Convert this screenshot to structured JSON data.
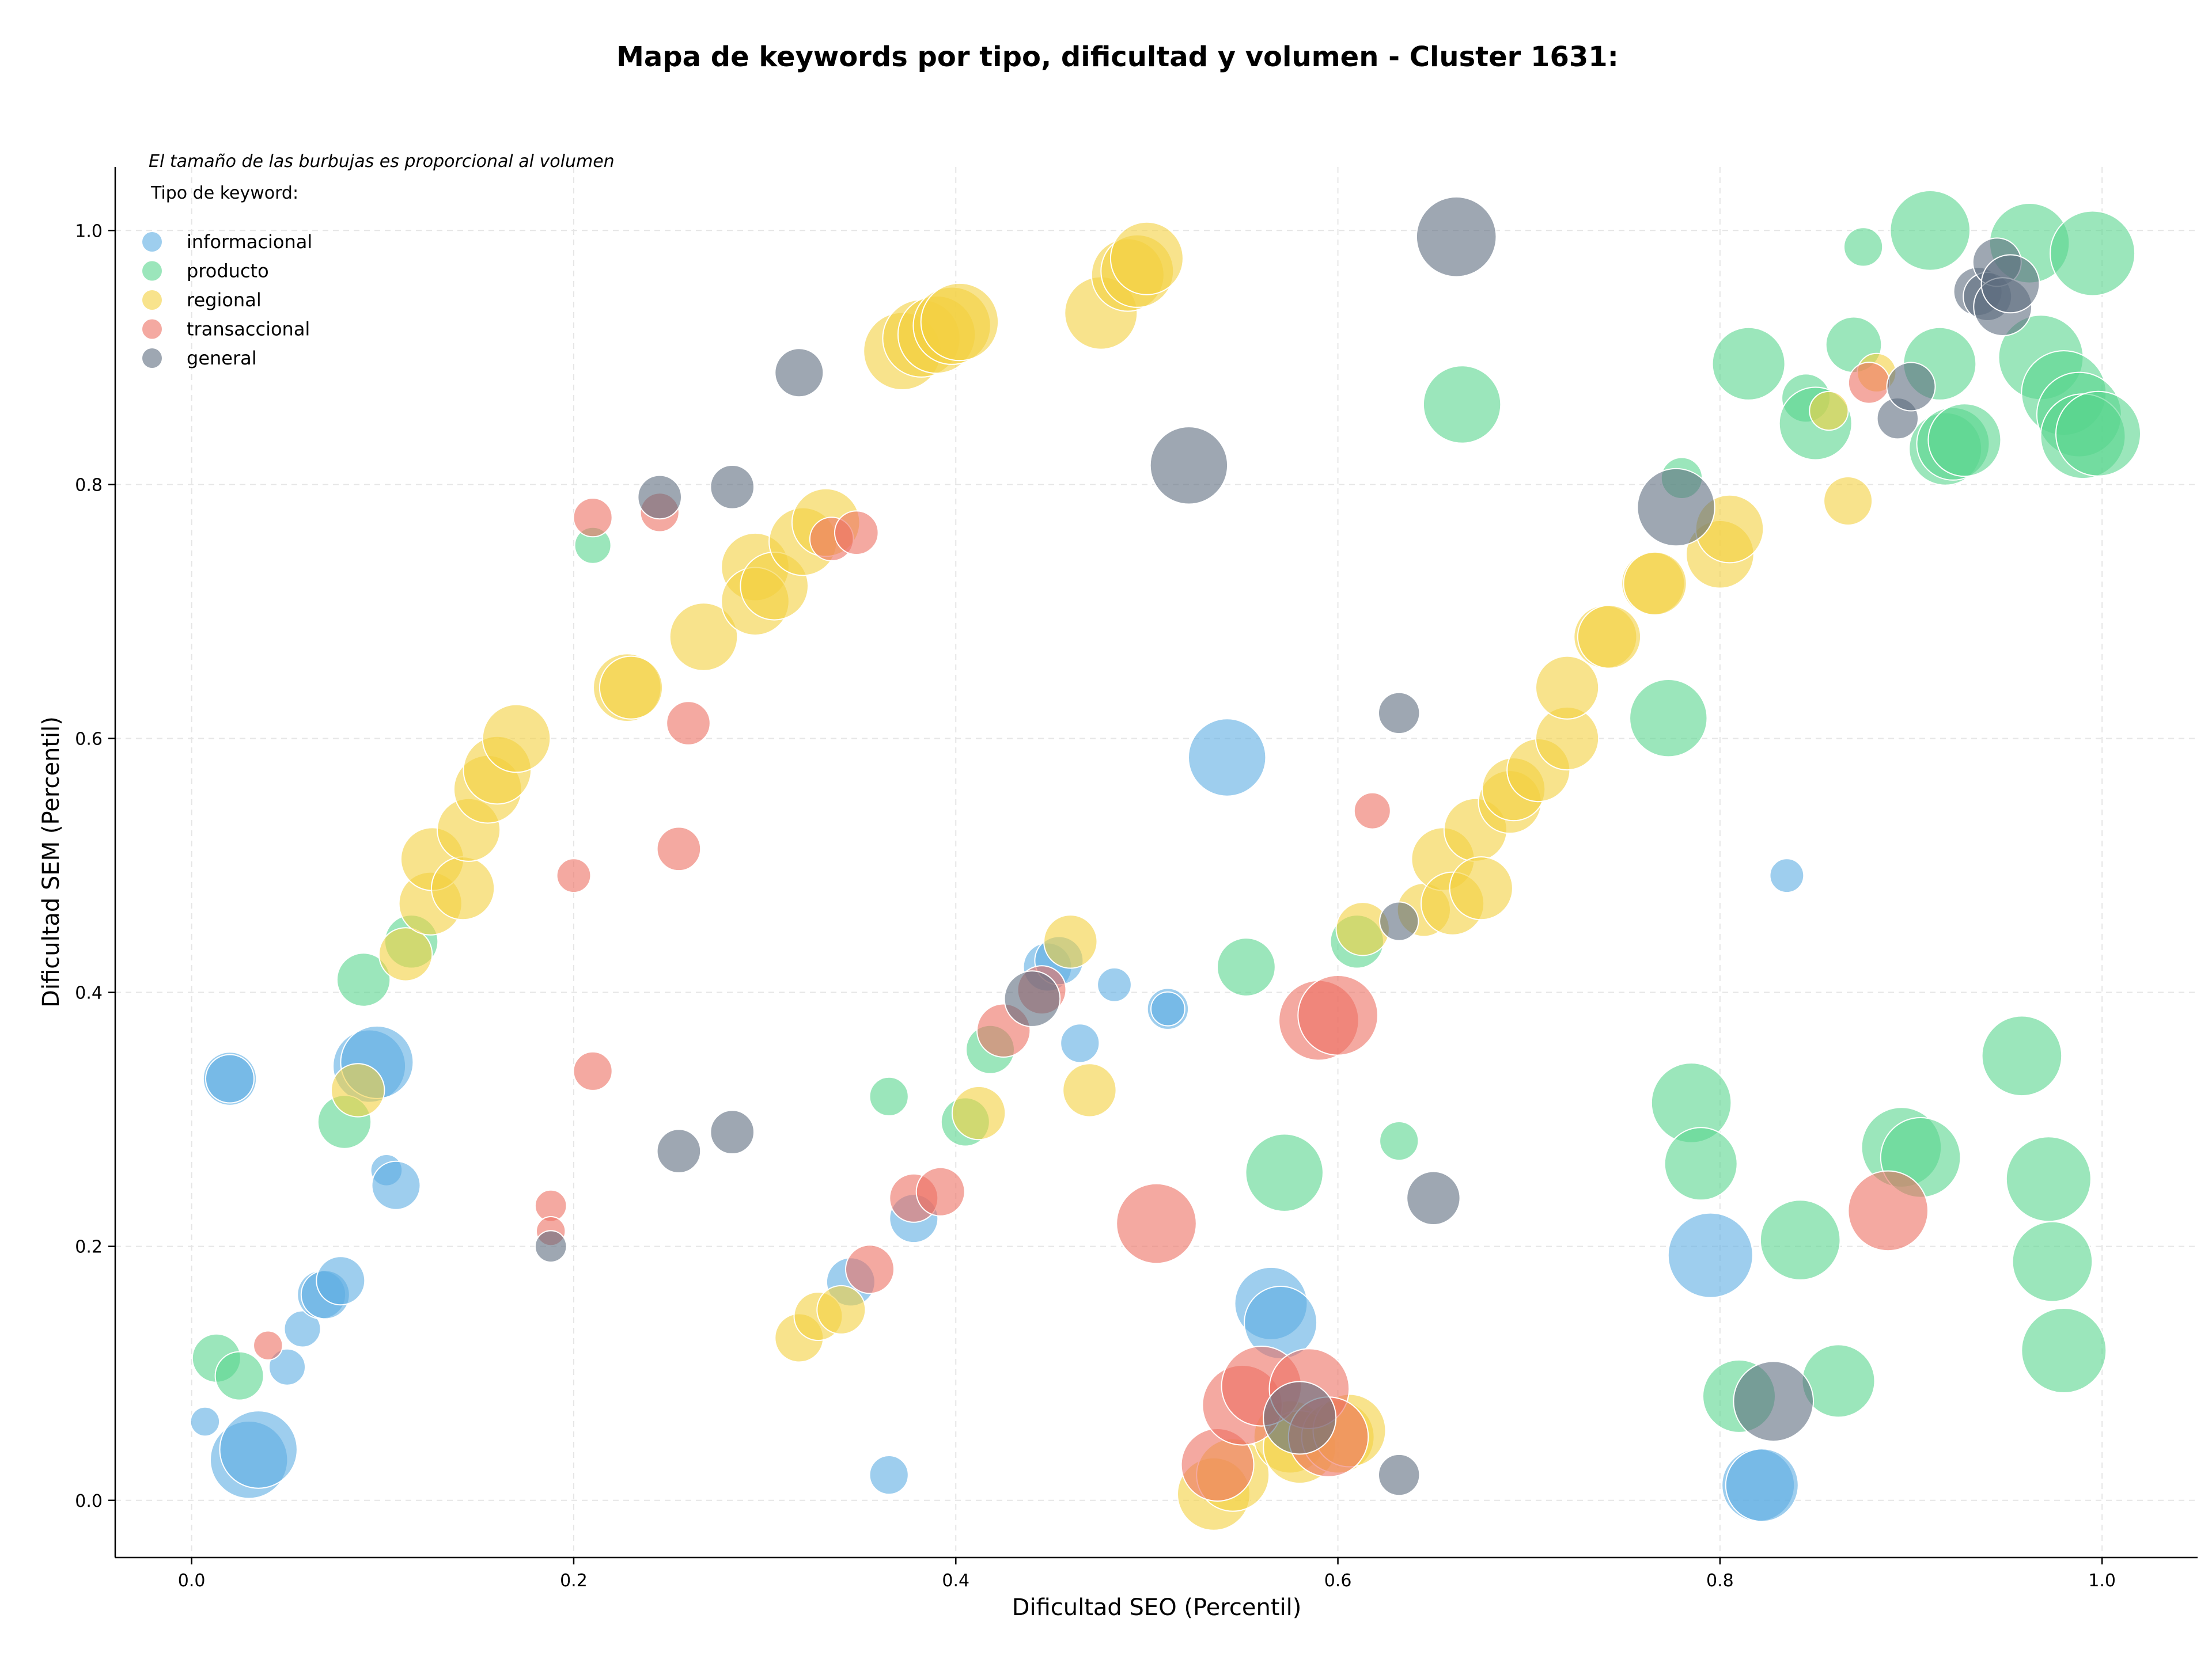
{
  "chart_data": {
    "type": "scatter",
    "title": "Mapa de keywords por tipo, dificultad y volumen - Cluster 1631:",
    "xlabel": "Dificultad SEO (Percentil)",
    "ylabel": "Dificultad SEM (Percentil)",
    "note": "El tamaño de las burbujas es proporcional al volumen",
    "legend_title": "Tipo de keyword:",
    "legend_position": "top-left",
    "grid": true,
    "xlim": [
      -0.04,
      1.05
    ],
    "ylim": [
      -0.045,
      1.05
    ],
    "xticks": [
      "0.0",
      "0.2",
      "0.4",
      "0.6",
      "0.8",
      "1.0"
    ],
    "yticks": [
      "0.0",
      "0.2",
      "0.4",
      "0.6",
      "0.8",
      "1.0"
    ],
    "size_note": "third value in each point is the relative bubble size (proportional to volume)",
    "series": [
      {
        "name": "informacional",
        "color": "#5dade2",
        "points": [
          [
            0.007,
            0.062,
            1.2
          ],
          [
            0.03,
            0.032,
            3.2
          ],
          [
            0.035,
            0.04,
            3.2
          ],
          [
            0.05,
            0.105,
            1.5
          ],
          [
            0.058,
            0.135,
            1.5
          ],
          [
            0.068,
            0.162,
            2.0
          ],
          [
            0.07,
            0.162,
            2.0
          ],
          [
            0.078,
            0.173,
            2.0
          ],
          [
            0.02,
            0.332,
            2.2
          ],
          [
            0.02,
            0.332,
            2.0
          ],
          [
            0.093,
            0.342,
            3.0
          ],
          [
            0.097,
            0.345,
            3.0
          ],
          [
            0.102,
            0.26,
            1.3
          ],
          [
            0.107,
            0.248,
            2.0
          ],
          [
            0.345,
            0.172,
            2.0
          ],
          [
            0.365,
            0.02,
            1.6
          ],
          [
            0.378,
            0.222,
            2.0
          ],
          [
            0.448,
            0.42,
            2.0
          ],
          [
            0.454,
            0.425,
            2.0
          ],
          [
            0.465,
            0.36,
            1.6
          ],
          [
            0.483,
            0.406,
            1.4
          ],
          [
            0.511,
            0.387,
            1.7
          ],
          [
            0.511,
            0.387,
            1.4
          ],
          [
            0.542,
            0.585,
            3.2
          ],
          [
            0.565,
            0.155,
            3.0
          ],
          [
            0.57,
            0.14,
            3.0
          ],
          [
            0.795,
            0.193,
            3.5
          ],
          [
            0.82,
            0.012,
            3.0
          ],
          [
            0.822,
            0.012,
            3.0
          ],
          [
            0.835,
            0.492,
            1.4
          ]
        ]
      },
      {
        "name": "producto",
        "color": "#58d68d",
        "points": [
          [
            0.013,
            0.112,
            2.0
          ],
          [
            0.025,
            0.098,
            2.0
          ],
          [
            0.08,
            0.298,
            2.2
          ],
          [
            0.09,
            0.41,
            2.2
          ],
          [
            0.115,
            0.44,
            2.2
          ],
          [
            0.21,
            0.752,
            1.5
          ],
          [
            0.365,
            0.318,
            1.6
          ],
          [
            0.405,
            0.298,
            2.0
          ],
          [
            0.418,
            0.355,
            2.0
          ],
          [
            0.552,
            0.42,
            2.4
          ],
          [
            0.572,
            0.258,
            3.2
          ],
          [
            0.61,
            0.44,
            2.2
          ],
          [
            0.632,
            0.283,
            1.6
          ],
          [
            0.665,
            0.863,
            3.2
          ],
          [
            0.773,
            0.616,
            3.2
          ],
          [
            0.78,
            0.805,
            1.7
          ],
          [
            0.785,
            0.313,
            3.3
          ],
          [
            0.79,
            0.265,
            3.0
          ],
          [
            0.81,
            0.082,
            3.0
          ],
          [
            0.815,
            0.895,
            3.0
          ],
          [
            0.842,
            0.205,
            3.3
          ],
          [
            0.845,
            0.868,
            2.0
          ],
          [
            0.85,
            0.848,
            3.0
          ],
          [
            0.862,
            0.094,
            3.0
          ],
          [
            0.87,
            0.91,
            2.3
          ],
          [
            0.875,
            0.987,
            1.6
          ],
          [
            0.895,
            0.278,
            3.3
          ],
          [
            0.905,
            0.27,
            3.3
          ],
          [
            0.91,
            1.0,
            3.3
          ],
          [
            0.915,
            0.895,
            3.0
          ],
          [
            0.918,
            0.828,
            3.0
          ],
          [
            0.922,
            0.832,
            3.0
          ],
          [
            0.928,
            0.835,
            3.0
          ],
          [
            0.958,
            0.35,
            3.3
          ],
          [
            0.962,
            0.99,
            3.3
          ],
          [
            0.968,
            0.9,
            3.5
          ],
          [
            0.972,
            0.253,
            3.5
          ],
          [
            0.974,
            0.188,
            3.3
          ],
          [
            0.98,
            0.118,
            3.5
          ],
          [
            0.98,
            0.872,
            3.5
          ],
          [
            0.988,
            0.855,
            3.5
          ],
          [
            0.99,
            0.838,
            3.5
          ],
          [
            0.995,
            0.982,
            3.5
          ],
          [
            0.998,
            0.84,
            3.5
          ]
        ]
      },
      {
        "name": "regional",
        "color": "#f4d03f",
        "points": [
          [
            0.087,
            0.323,
            2.2
          ],
          [
            0.112,
            0.43,
            2.2
          ],
          [
            0.125,
            0.47,
            2.6
          ],
          [
            0.126,
            0.505,
            2.6
          ],
          [
            0.142,
            0.482,
            2.6
          ],
          [
            0.145,
            0.528,
            2.6
          ],
          [
            0.155,
            0.56,
            2.8
          ],
          [
            0.16,
            0.575,
            2.8
          ],
          [
            0.17,
            0.6,
            2.8
          ],
          [
            0.228,
            0.64,
            2.8
          ],
          [
            0.23,
            0.64,
            2.6
          ],
          [
            0.268,
            0.68,
            2.8
          ],
          [
            0.295,
            0.735,
            2.8
          ],
          [
            0.295,
            0.708,
            2.8
          ],
          [
            0.305,
            0.72,
            2.8
          ],
          [
            0.32,
            0.755,
            2.8
          ],
          [
            0.332,
            0.77,
            2.8
          ],
          [
            0.318,
            0.128,
            2.0
          ],
          [
            0.328,
            0.145,
            2.0
          ],
          [
            0.34,
            0.15,
            2.0
          ],
          [
            0.372,
            0.905,
            3.2
          ],
          [
            0.382,
            0.915,
            3.2
          ],
          [
            0.39,
            0.918,
            3.2
          ],
          [
            0.398,
            0.925,
            3.2
          ],
          [
            0.402,
            0.928,
            3.2
          ],
          [
            0.412,
            0.305,
            2.2
          ],
          [
            0.46,
            0.44,
            2.2
          ],
          [
            0.47,
            0.323,
            2.2
          ],
          [
            0.476,
            0.935,
            3.0
          ],
          [
            0.49,
            0.965,
            3.0
          ],
          [
            0.495,
            0.968,
            3.0
          ],
          [
            0.5,
            0.978,
            3.0
          ],
          [
            0.535,
            0.005,
            3.0
          ],
          [
            0.545,
            0.02,
            3.0
          ],
          [
            0.575,
            0.05,
            3.0
          ],
          [
            0.58,
            0.042,
            3.0
          ],
          [
            0.6,
            0.05,
            3.0
          ],
          [
            0.606,
            0.055,
            3.0
          ],
          [
            0.613,
            0.45,
            2.2
          ],
          [
            0.645,
            0.465,
            2.2
          ],
          [
            0.655,
            0.505,
            2.6
          ],
          [
            0.66,
            0.47,
            2.6
          ],
          [
            0.672,
            0.528,
            2.6
          ],
          [
            0.675,
            0.482,
            2.6
          ],
          [
            0.69,
            0.55,
            2.6
          ],
          [
            0.692,
            0.56,
            2.6
          ],
          [
            0.705,
            0.575,
            2.6
          ],
          [
            0.72,
            0.6,
            2.6
          ],
          [
            0.72,
            0.64,
            2.6
          ],
          [
            0.74,
            0.68,
            2.6
          ],
          [
            0.742,
            0.68,
            2.6
          ],
          [
            0.765,
            0.722,
            2.6
          ],
          [
            0.766,
            0.722,
            2.6
          ],
          [
            0.8,
            0.745,
            2.8
          ],
          [
            0.805,
            0.765,
            2.8
          ],
          [
            0.857,
            0.858,
            1.6
          ],
          [
            0.867,
            0.787,
            2.0
          ],
          [
            0.882,
            0.888,
            1.6
          ]
        ]
      },
      {
        "name": "transaccional",
        "color": "#ec7063",
        "points": [
          [
            0.04,
            0.122,
            1.2
          ],
          [
            0.188,
            0.232,
            1.3
          ],
          [
            0.188,
            0.212,
            1.2
          ],
          [
            0.2,
            0.492,
            1.4
          ],
          [
            0.21,
            0.774,
            1.6
          ],
          [
            0.21,
            0.338,
            1.6
          ],
          [
            0.245,
            0.778,
            1.6
          ],
          [
            0.255,
            0.513,
            1.8
          ],
          [
            0.26,
            0.612,
            1.8
          ],
          [
            0.335,
            0.757,
            1.8
          ],
          [
            0.348,
            0.762,
            1.8
          ],
          [
            0.355,
            0.182,
            2.0
          ],
          [
            0.378,
            0.238,
            2.0
          ],
          [
            0.392,
            0.243,
            2.0
          ],
          [
            0.425,
            0.37,
            2.2
          ],
          [
            0.445,
            0.402,
            2.0
          ],
          [
            0.505,
            0.218,
            3.3
          ],
          [
            0.537,
            0.028,
            3.0
          ],
          [
            0.55,
            0.075,
            3.3
          ],
          [
            0.56,
            0.09,
            3.3
          ],
          [
            0.585,
            0.088,
            3.3
          ],
          [
            0.59,
            0.378,
            3.3
          ],
          [
            0.595,
            0.05,
            3.3
          ],
          [
            0.6,
            0.382,
            3.3
          ],
          [
            0.618,
            0.543,
            1.5
          ],
          [
            0.878,
            0.88,
            1.7
          ],
          [
            0.888,
            0.228,
            3.3
          ]
        ]
      },
      {
        "name": "general",
        "color": "#5d6d7e",
        "points": [
          [
            0.188,
            0.2,
            1.3
          ],
          [
            0.245,
            0.79,
            1.8
          ],
          [
            0.255,
            0.275,
            1.8
          ],
          [
            0.283,
            0.798,
            1.8
          ],
          [
            0.283,
            0.29,
            1.8
          ],
          [
            0.318,
            0.888,
            2.0
          ],
          [
            0.44,
            0.395,
            2.3
          ],
          [
            0.522,
            0.815,
            3.2
          ],
          [
            0.58,
            0.065,
            3.0
          ],
          [
            0.632,
            0.62,
            1.7
          ],
          [
            0.632,
            0.456,
            1.6
          ],
          [
            0.632,
            0.02,
            1.7
          ],
          [
            0.65,
            0.238,
            2.2
          ],
          [
            0.662,
            0.995,
            3.3
          ],
          [
            0.777,
            0.782,
            3.2
          ],
          [
            0.828,
            0.078,
            3.3
          ],
          [
            0.893,
            0.852,
            1.7
          ],
          [
            0.9,
            0.877,
            2.0
          ],
          [
            0.935,
            0.952,
            2.0
          ],
          [
            0.94,
            0.948,
            2.0
          ],
          [
            0.945,
            0.975,
            2.0
          ],
          [
            0.948,
            0.94,
            2.4
          ],
          [
            0.952,
            0.958,
            2.4
          ]
        ]
      }
    ]
  }
}
